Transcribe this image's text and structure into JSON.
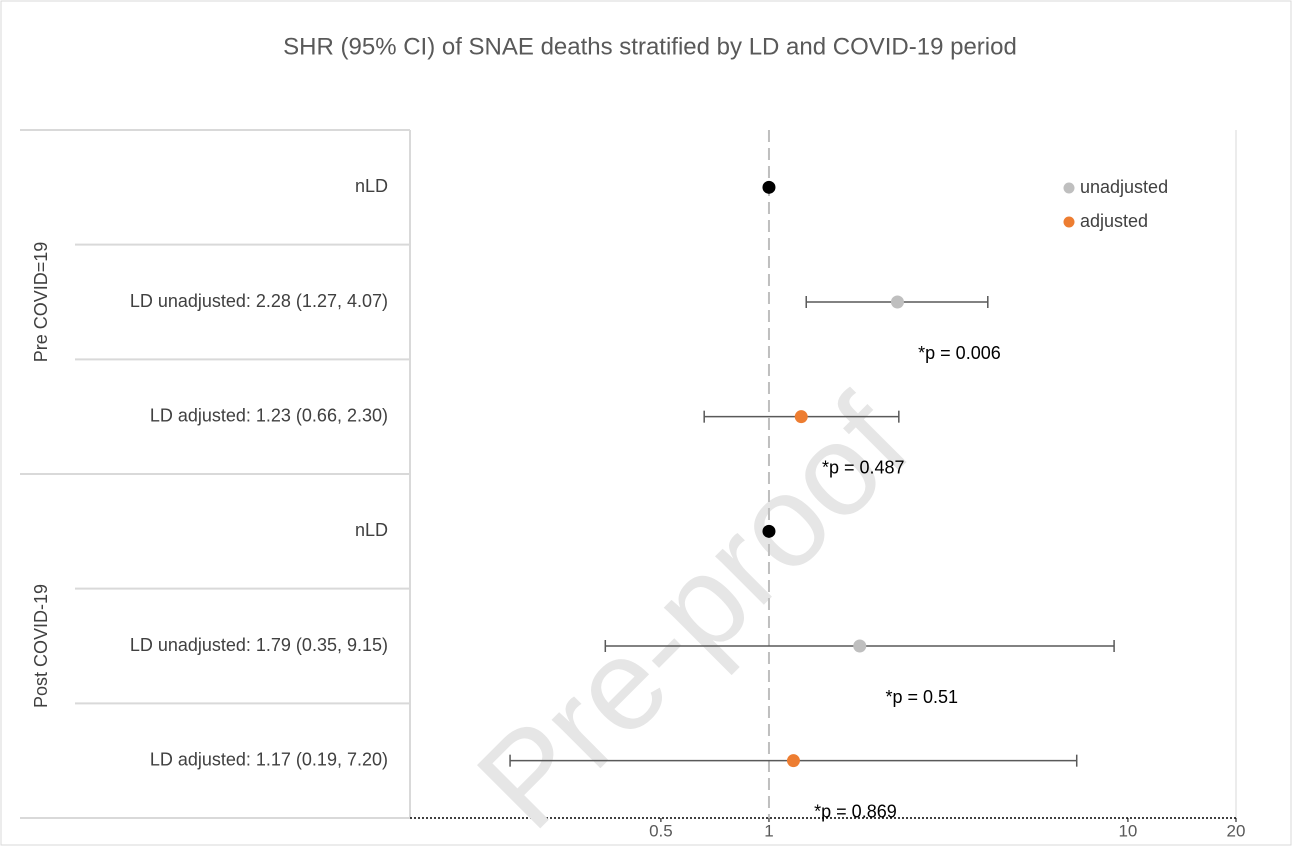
{
  "chart_data": {
    "type": "forest",
    "title": "SHR (95% CI) of SNAE deaths stratified by LD and COVID-19 period",
    "groups": [
      {
        "name": "Pre COVID=19",
        "categories": [
          "nLD",
          "LD unadjusted: 2.28 (1.27, 4.07)",
          "LD adjusted: 1.23 (0.66, 2.30)"
        ]
      },
      {
        "name": "Post COVID-19",
        "categories": [
          "nLD",
          "LD unadjusted: 1.79 (0.35, 9.15)",
          "LD adjusted: 1.17 (0.19, 7.20)"
        ]
      }
    ],
    "reference": {
      "color": "#000000",
      "values": [
        1,
        null,
        null,
        1,
        null,
        null
      ]
    },
    "series": [
      {
        "name": "unadjusted",
        "color": "#bfbfbf",
        "values": [
          null,
          2.28,
          null,
          null,
          1.79,
          null
        ],
        "lower": [
          null,
          1.27,
          null,
          null,
          0.35,
          null
        ],
        "upper": [
          null,
          4.07,
          null,
          null,
          9.15,
          null
        ],
        "p_labels": [
          null,
          "*p = 0.006",
          null,
          null,
          "*p = 0.51",
          null
        ]
      },
      {
        "name": "adjusted",
        "color": "#ed7d31",
        "values": [
          null,
          null,
          1.23,
          null,
          null,
          1.17
        ],
        "lower": [
          null,
          null,
          0.66,
          null,
          null,
          0.19
        ],
        "upper": [
          null,
          null,
          2.3,
          null,
          null,
          7.2
        ],
        "p_labels": [
          null,
          null,
          "*p = 0.487",
          null,
          null,
          "*p = 0.869"
        ]
      }
    ],
    "xlim": [
      0.1,
      20
    ],
    "xticks": [
      0.5,
      1,
      10,
      20
    ],
    "x_log": true,
    "reference_line": 1,
    "legend": "upper right",
    "watermark": "Pre-proof"
  }
}
